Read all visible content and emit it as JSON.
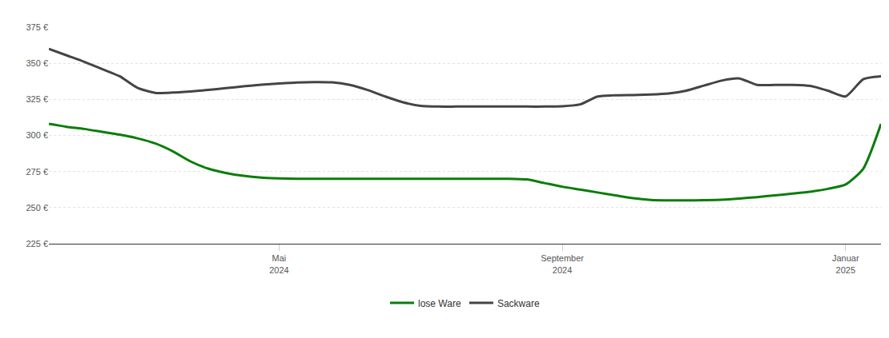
{
  "chart_data": {
    "type": "line",
    "categories": [
      null,
      null,
      null,
      null,
      null,
      null,
      null,
      null,
      null,
      null,
      null,
      null,
      null,
      "Mai 2024",
      null,
      null,
      null,
      null,
      null,
      null,
      null,
      null,
      null,
      null,
      null,
      null,
      null,
      null,
      null,
      "September 2024",
      null,
      null,
      null,
      null,
      null,
      null,
      null,
      null,
      null,
      null,
      null,
      null,
      null,
      null,
      null,
      "Januar 2025",
      null,
      null
    ],
    "series": [
      {
        "name": "lose Ware",
        "color": "#0a7d0a",
        "values": [
          308,
          306,
          304.5,
          302.5,
          300.5,
          298,
          294.5,
          289,
          282,
          277,
          274,
          272,
          270.8,
          270.3,
          270,
          270,
          270,
          270,
          270,
          270,
          270,
          270,
          270,
          270,
          270,
          270,
          270,
          269.5,
          267,
          264.5,
          262.5,
          260.5,
          258.5,
          256.5,
          255.3,
          255,
          255,
          255.2,
          255.5,
          256.3,
          257.3,
          258.5,
          259.7,
          261,
          263,
          266,
          277,
          308
        ]
      },
      {
        "name": "Sackware",
        "color": "#444444",
        "values": [
          360,
          355.5,
          351,
          346,
          341,
          333,
          329.5,
          329.7,
          330.5,
          331.5,
          332.8,
          334,
          335.2,
          336,
          336.7,
          337,
          336.8,
          335,
          331.5,
          327,
          323,
          320.5,
          320,
          320,
          320,
          320,
          320,
          320,
          320,
          320.2,
          321.5,
          327,
          327.8,
          328,
          328.3,
          329,
          331,
          334.5,
          338,
          339.5,
          335,
          335,
          335,
          334.3,
          331,
          327,
          339,
          341
        ]
      }
    ],
    "ylim": [
      225,
      375
    ],
    "yticks": [
      {
        "value": 225,
        "label": "225 €"
      },
      {
        "value": 250,
        "label": "250 €"
      },
      {
        "value": 275,
        "label": "275 €"
      },
      {
        "value": 300,
        "label": "300 €"
      },
      {
        "value": 325,
        "label": "325 €"
      },
      {
        "value": 350,
        "label": "350 €"
      },
      {
        "value": 375,
        "label": "375 €"
      }
    ],
    "grid": true,
    "legend": "bottom"
  }
}
